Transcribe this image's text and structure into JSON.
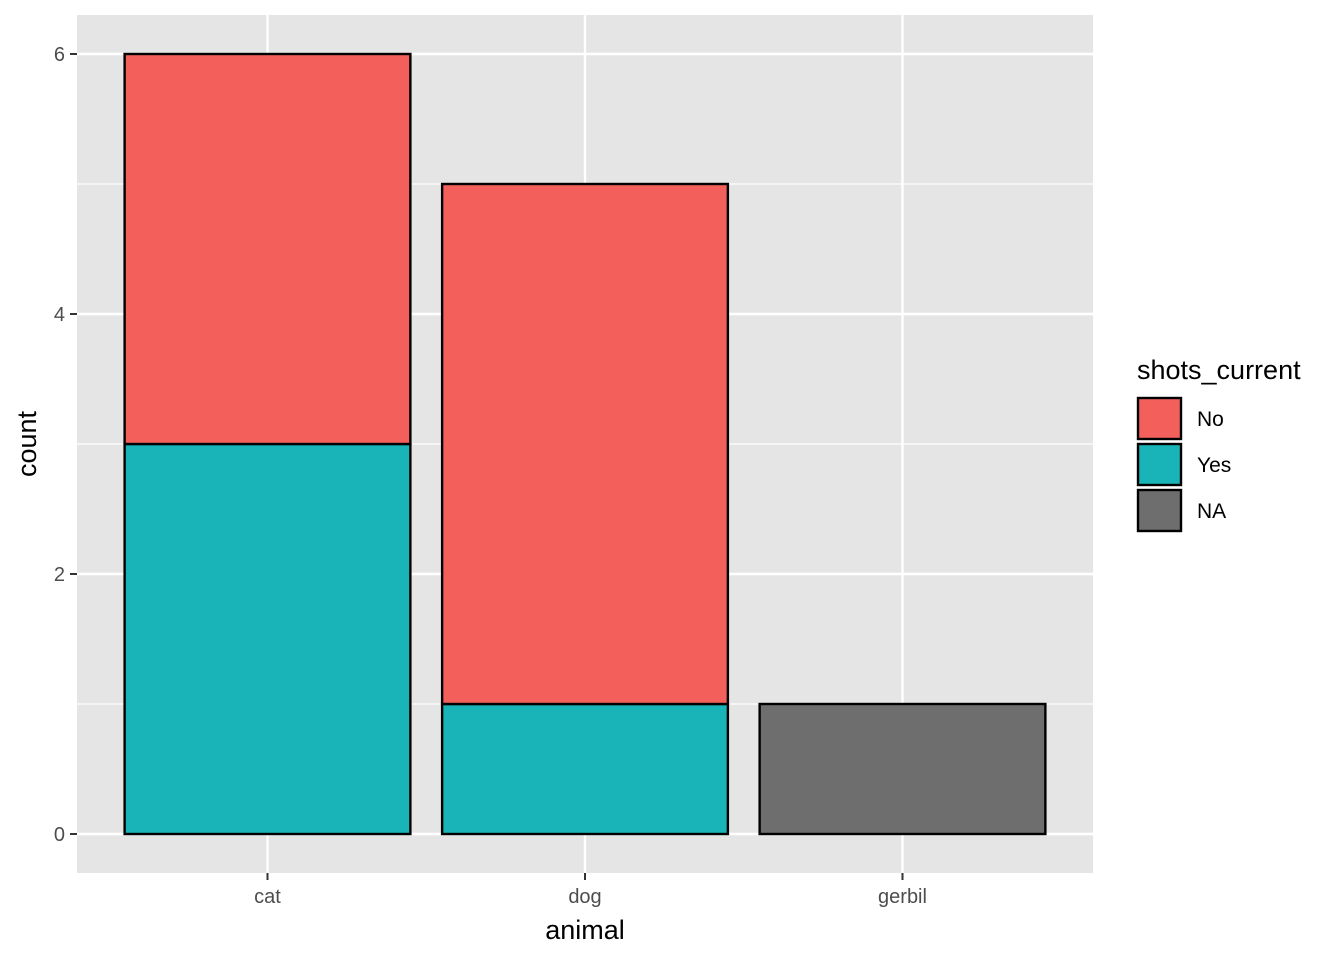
{
  "chart_data": {
    "type": "bar",
    "stacked": true,
    "categories": [
      "cat",
      "dog",
      "gerbil"
    ],
    "series": [
      {
        "name": "Yes",
        "color": "#19B4B8",
        "values": [
          3,
          1,
          0
        ]
      },
      {
        "name": "No",
        "color": "#F3605B",
        "values": [
          3,
          4,
          0
        ]
      },
      {
        "name": "NA",
        "color": "#6E6E6E",
        "values": [
          0,
          0,
          1
        ]
      }
    ],
    "xlabel": "animal",
    "ylabel": "count",
    "ylim": [
      -0.3,
      6.3
    ],
    "yticks": [
      0,
      2,
      4,
      6
    ],
    "grid": true,
    "panel_background": "#E5E5E5",
    "bar_outline_color": "#000000",
    "legend": {
      "title": "shots_current",
      "position": "right",
      "items": [
        {
          "label": "No",
          "color": "#F3605B"
        },
        {
          "label": "Yes",
          "color": "#19B4B8"
        },
        {
          "label": "NA",
          "color": "#6E6E6E"
        }
      ]
    }
  }
}
